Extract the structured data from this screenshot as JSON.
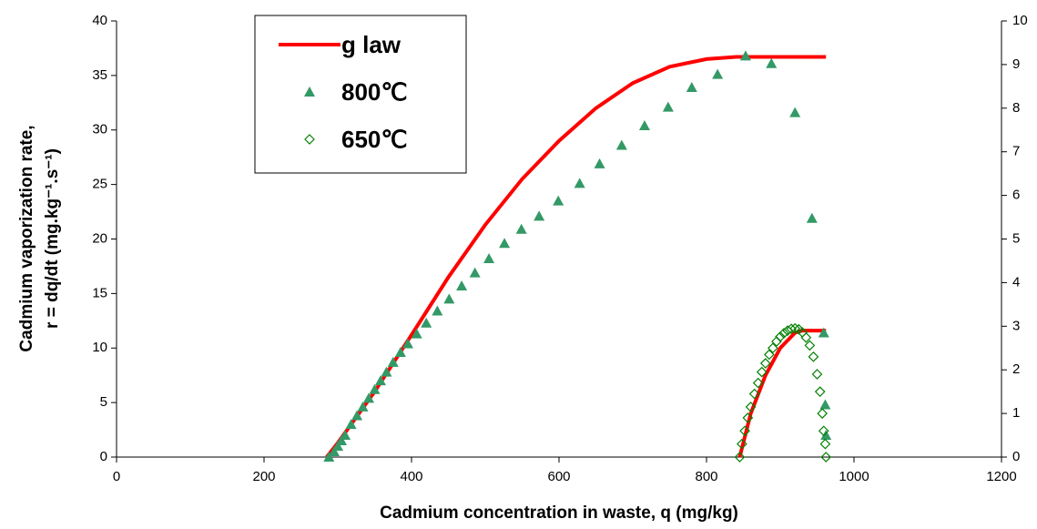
{
  "chart_data": {
    "type": "line-scatter",
    "xlabel": "Cadmium concentration in waste, q (mg/kg)",
    "ylabel": [
      "Cadmium vaporization rate,",
      "r = dq/dt (mg.kg⁻¹.s⁻¹)"
    ],
    "xlim": [
      0,
      1200
    ],
    "xticks": [
      0,
      200,
      400,
      600,
      800,
      1000,
      1200
    ],
    "ylim": [
      0,
      40
    ],
    "yticks": [
      0,
      5,
      10,
      15,
      20,
      25,
      30,
      35,
      40
    ],
    "y2lim": [
      0,
      10
    ],
    "y2ticks": [
      0,
      1,
      2,
      3,
      4,
      5,
      6,
      7,
      8,
      9,
      10
    ],
    "grid": false,
    "legend": "upper left",
    "series": [
      {
        "name": "g law",
        "color": "#ff0000",
        "marker": "line",
        "x": [
          285,
          300,
          350,
          400,
          450,
          500,
          550,
          600,
          650,
          700,
          750,
          800,
          840,
          962,
          null,
          845,
          860,
          880,
          900,
          920,
          930,
          962
        ],
        "values": [
          0,
          1.3,
          6.0,
          11.2,
          16.5,
          21.3,
          25.5,
          29,
          32,
          34.3,
          35.8,
          36.5,
          36.7,
          36.7,
          null,
          0,
          4,
          7.5,
          10,
          11.4,
          11.6,
          11.6
        ]
      },
      {
        "name": "800℃",
        "color": "#339966",
        "marker": "triangle",
        "x": [
          288,
          295,
          300,
          305,
          310,
          318,
          326,
          334,
          342,
          350,
          358,
          366,
          375,
          385,
          395,
          407,
          420,
          435,
          451,
          468,
          486,
          505,
          526,
          549,
          573,
          599,
          628,
          655,
          685,
          716,
          748,
          780,
          815,
          853,
          888,
          920,
          943,
          959,
          961,
          962
        ],
        "values": [
          0,
          0.5,
          1.0,
          1.5,
          2.0,
          3.0,
          3.8,
          4.6,
          5.4,
          6.2,
          7.0,
          7.8,
          8.7,
          9.6,
          10.4,
          11.3,
          12.3,
          13.4,
          14.5,
          15.7,
          16.9,
          18.2,
          19.6,
          20.9,
          22.1,
          23.5,
          25.1,
          26.9,
          28.6,
          30.4,
          32.1,
          33.9,
          35.1,
          36.8,
          36.1,
          31.6,
          21.9,
          11.4,
          4.8,
          2.0
        ]
      },
      {
        "name": "650℃",
        "color": "#008000",
        "marker": "diamond",
        "axis": "y2",
        "x": [
          845,
          848,
          852,
          856,
          860,
          865,
          870,
          875,
          880,
          885,
          890,
          895,
          900,
          905,
          910,
          915,
          920,
          925,
          930,
          935,
          940,
          945,
          950,
          954,
          957,
          959,
          961,
          962
        ],
        "values": [
          0,
          0.3,
          0.6,
          0.9,
          1.15,
          1.45,
          1.7,
          1.95,
          2.15,
          2.35,
          2.5,
          2.65,
          2.76,
          2.84,
          2.9,
          2.94,
          2.95,
          2.93,
          2.86,
          2.74,
          2.56,
          2.3,
          1.9,
          1.5,
          1.0,
          0.6,
          0.3,
          0
        ]
      }
    ]
  }
}
